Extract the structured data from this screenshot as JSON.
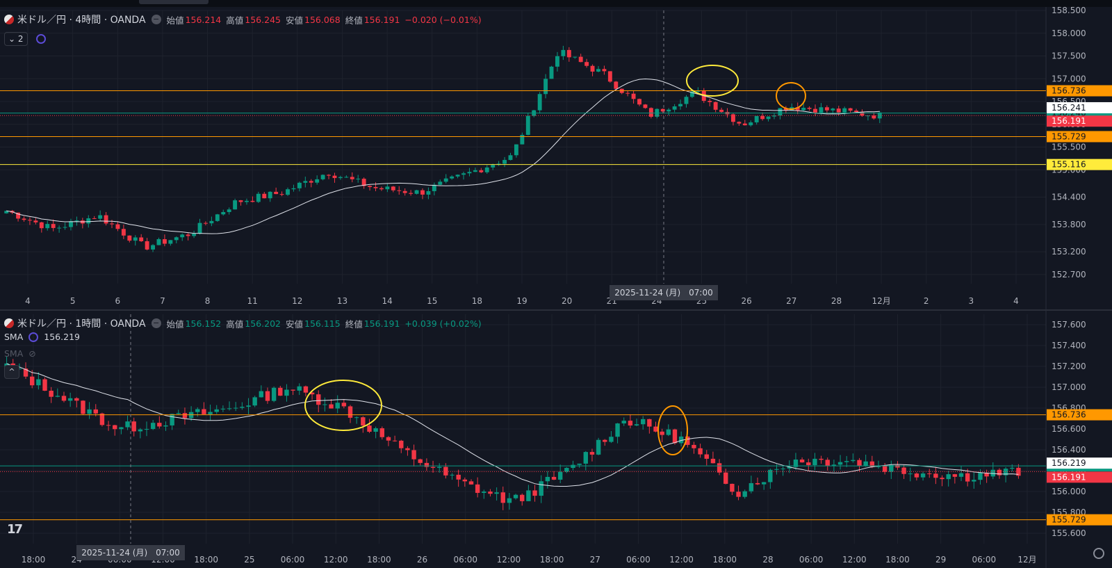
{
  "top_pane": {
    "symbol": "米ドル／円 · 4時間 · OANDA",
    "ohlc": {
      "open_label": "始値",
      "open": "156.214",
      "high_label": "高値",
      "high": "156.245",
      "low_label": "安値",
      "low": "156.068",
      "close_label": "終値",
      "close": "156.191",
      "change": "−0.020 (−0.01%)"
    },
    "indicator_count": "2",
    "crosshair_label": "2025-11-24 (月)　07:00"
  },
  "bottom_pane": {
    "symbol": "米ドル／円 · 1時間 · OANDA",
    "ohlc": {
      "open_label": "始値",
      "open": "156.152",
      "high_label": "高値",
      "high": "156.202",
      "low_label": "安値",
      "low": "156.115",
      "close_label": "終値",
      "close": "156.191",
      "change": "+0.039 (+0.02%)"
    },
    "sma_label": "SMA",
    "sma_value": "156.219",
    "sma2_label": "SMA",
    "crosshair_label": "2025-11-24 (月)　07:00"
  },
  "colors": {
    "up": "#089981",
    "down": "#f23645",
    "bg": "#131722",
    "grid": "#1e222d",
    "orange": "#ff9800",
    "yellow": "#ffeb3b",
    "sma": "#e0e3eb"
  },
  "chart_data": [
    {
      "type": "candlestick",
      "title": "米ドル／円 · 4時間 · OANDA",
      "ylim": [
        152.5,
        158.5
      ],
      "y_ticks": [
        "158.500",
        "158.000",
        "157.500",
        "157.000",
        "156.500",
        "156.000",
        "155.500",
        "155.000",
        "154.400",
        "153.800",
        "153.200",
        "152.700"
      ],
      "x_ticks": [
        "4",
        "5",
        "6",
        "7",
        "8",
        "11",
        "12",
        "13",
        "14",
        "15",
        "18",
        "19",
        "20",
        "21",
        "24",
        "25",
        "26",
        "27",
        "28",
        "12月",
        "2",
        "3",
        "4"
      ],
      "hlines": [
        {
          "value": 156.736,
          "label": "156.736",
          "color": "#ff9800"
        },
        {
          "value": 156.246,
          "label": "156.246",
          "color": "#089981"
        },
        {
          "value": 155.729,
          "label": "155.729",
          "color": "#ff9800"
        },
        {
          "value": 155.116,
          "label": "155.116",
          "color": "#ffeb3b"
        }
      ],
      "price_labels": [
        {
          "value": 156.241,
          "label": "156.241",
          "color": "#ffffff"
        },
        {
          "value": 156.191,
          "label": "156.191",
          "color": "#f23645"
        }
      ],
      "daily_closes": [
        154.1,
        153.7,
        154.0,
        153.3,
        153.6,
        154.3,
        154.5,
        154.95,
        154.6,
        154.5,
        154.9,
        155.3,
        157.6,
        157.1,
        156.2,
        156.7,
        156.0,
        156.4,
        156.3,
        156.19
      ],
      "sma_last": 156.22
    },
    {
      "type": "candlestick",
      "title": "米ドル／円 · 1時間 · OANDA",
      "ylim": [
        155.5,
        157.7
      ],
      "y_ticks": [
        "157.600",
        "157.400",
        "157.200",
        "157.000",
        "156.800",
        "156.600",
        "156.400",
        "156.200",
        "156.000",
        "155.800",
        "155.600"
      ],
      "x_ticks": [
        "18:00",
        "24",
        "06:00",
        "12:00",
        "18:00",
        "25",
        "06:00",
        "12:00",
        "18:00",
        "26",
        "06:00",
        "12:00",
        "18:00",
        "27",
        "06:00",
        "12:00",
        "18:00",
        "28",
        "06:00",
        "12:00",
        "18:00",
        "29",
        "06:00",
        "12月"
      ],
      "hlines": [
        {
          "value": 156.736,
          "label": "156.736",
          "color": "#ff9800"
        },
        {
          "value": 156.246,
          "label": "156.246",
          "color": "#089981"
        },
        {
          "value": 155.729,
          "label": "155.729",
          "color": "#ff9800"
        }
      ],
      "price_labels": [
        {
          "value": 156.219,
          "label": "156.219",
          "color": "#ffffff"
        },
        {
          "value": 156.191,
          "label": "156.191",
          "color": "#f23645"
        }
      ],
      "sma_value": 156.219
    }
  ]
}
